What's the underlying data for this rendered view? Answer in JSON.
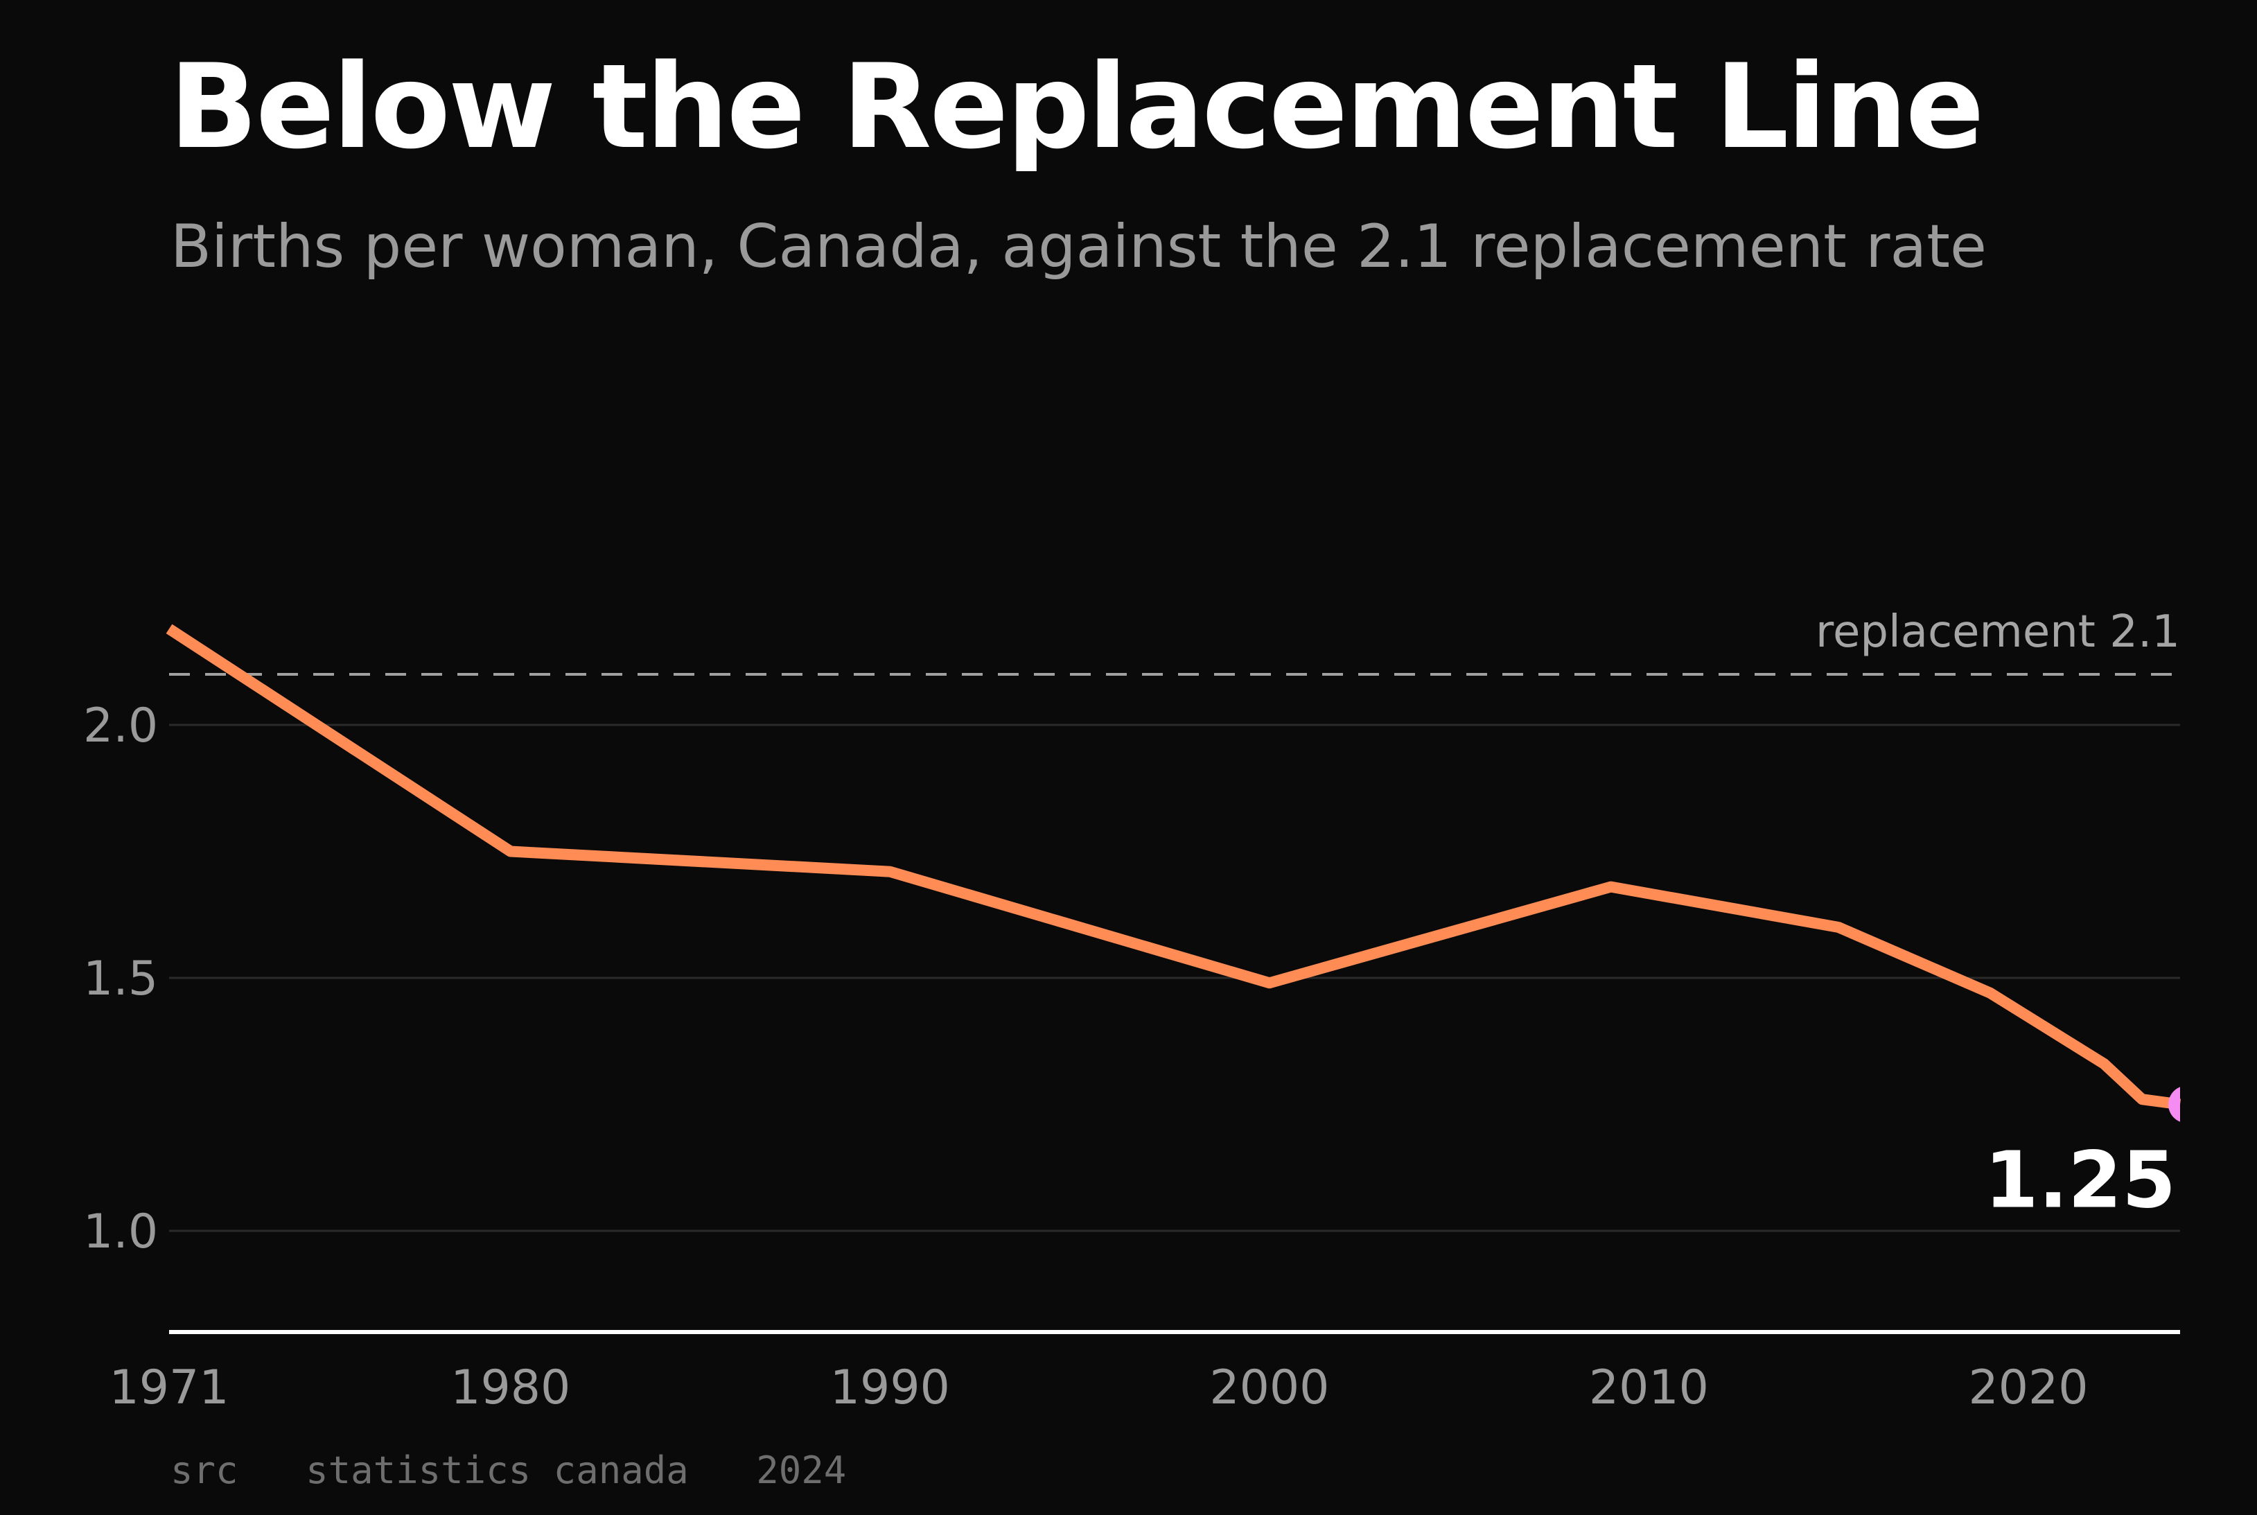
{
  "header": {
    "title": "Below the Replacement Line",
    "subtitle": "Births per woman, Canada, against the 2.1 replacement rate"
  },
  "footer": {
    "source": "src   statistics canada   2024"
  },
  "colors": {
    "background": "#0a0a0a",
    "line": "#ff8c55",
    "end_marker": "#f58cf2",
    "reference_line": "#a0a0a0",
    "gridline": "#2a2a2a",
    "axis": "#ffffff"
  },
  "chart_data": {
    "type": "line",
    "title": "Below the Replacement Line",
    "subtitle": "Births per woman, Canada, against the 2.1 replacement rate",
    "xlabel": "",
    "ylabel": "",
    "xlim": [
      1971,
      2024
    ],
    "ylim": [
      0.8,
      2.2
    ],
    "x_ticks": [
      1971,
      1980,
      1990,
      2000,
      2010,
      2020
    ],
    "y_ticks": [
      1.0,
      1.5,
      2.0
    ],
    "y_tick_labels": [
      "1.0",
      "1.5",
      "2.0"
    ],
    "grid": true,
    "series": [
      {
        "x": [
          1971,
          1980,
          1990,
          2000,
          2009,
          2015,
          2019,
          2022,
          2023,
          2024
        ],
        "values": [
          2.19,
          1.75,
          1.71,
          1.49,
          1.68,
          1.6,
          1.47,
          1.33,
          1.26,
          1.25
        ]
      }
    ],
    "reference_line": {
      "y": 2.1,
      "label": "replacement  2.1",
      "style": "dashed"
    },
    "end_label": "1.25"
  }
}
